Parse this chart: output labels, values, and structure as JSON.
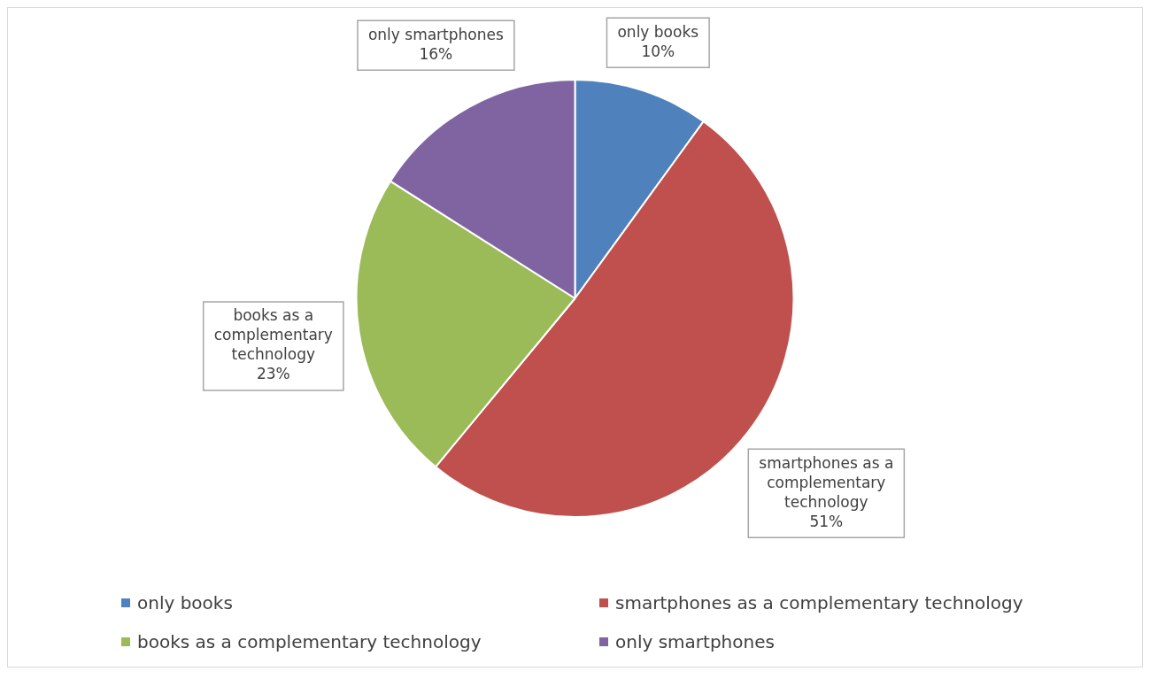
{
  "chart_data": {
    "type": "pie",
    "categories": [
      "only books",
      "smartphones as a complementary technology",
      "books as a complementary technology",
      "only smartphones"
    ],
    "values": [
      10,
      51,
      23,
      16
    ],
    "colors": [
      "#4f81bd",
      "#c0504d",
      "#9bbb59",
      "#8064a2"
    ],
    "value_labels": [
      "10%",
      "51%",
      "23%",
      "16%"
    ],
    "legend": "bottom"
  }
}
